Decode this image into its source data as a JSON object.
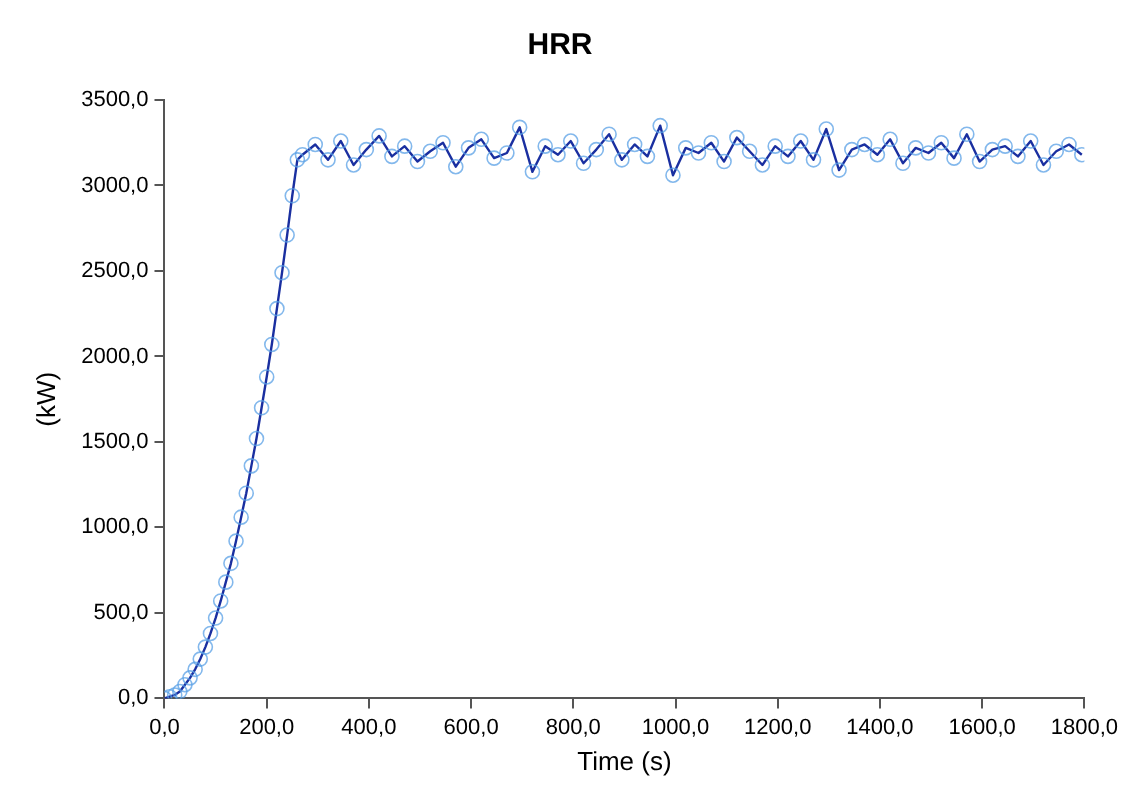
{
  "chart_data": {
    "type": "line",
    "title": "HRR",
    "xlabel": "Time (s)",
    "ylabel": "(kW)",
    "xlim": [
      0,
      1800
    ],
    "xticks": [
      {
        "value": 0,
        "label": "0,0"
      },
      {
        "value": 200,
        "label": "200,0"
      },
      {
        "value": 400,
        "label": "400,0"
      },
      {
        "value": 600,
        "label": "600,0"
      },
      {
        "value": 800,
        "label": "800,0"
      },
      {
        "value": 1000,
        "label": "1000,0"
      },
      {
        "value": 1200,
        "label": "1200,0"
      },
      {
        "value": 1400,
        "label": "1400,0"
      },
      {
        "value": 1600,
        "label": "1600,0"
      },
      {
        "value": 1800,
        "label": "1800,0"
      }
    ],
    "ylim": [
      0,
      3500
    ],
    "yticks": [
      {
        "value": 0,
        "label": "0,0"
      },
      {
        "value": 500,
        "label": "500,0"
      },
      {
        "value": 1000,
        "label": "1000,0"
      },
      {
        "value": 1500,
        "label": "1500,0"
      },
      {
        "value": 2000,
        "label": "2000,0"
      },
      {
        "value": 2500,
        "label": "2500,0"
      },
      {
        "value": 3000,
        "label": "3000,0"
      },
      {
        "value": 3500,
        "label": "3500,0"
      }
    ],
    "grid": false,
    "legend": false,
    "marker": "circle",
    "line_style": "solid",
    "series": [
      {
        "color": "#1a2fa0",
        "x": [
          0,
          10,
          20,
          30,
          40,
          50,
          60,
          70,
          80,
          90,
          100,
          110,
          120,
          130,
          140,
          150,
          160,
          170,
          180,
          190,
          200,
          210,
          220,
          230,
          240,
          250,
          260,
          270,
          295,
          320,
          345,
          370,
          395,
          420,
          445,
          470,
          495,
          520,
          545,
          570,
          595,
          620,
          645,
          670,
          695,
          720,
          745,
          770,
          795,
          820,
          845,
          870,
          895,
          920,
          945,
          970,
          995,
          1020,
          1045,
          1070,
          1095,
          1120,
          1145,
          1170,
          1195,
          1220,
          1245,
          1270,
          1295,
          1320,
          1345,
          1370,
          1395,
          1420,
          1445,
          1470,
          1495,
          1520,
          1545,
          1570,
          1595,
          1620,
          1645,
          1670,
          1695,
          1720,
          1745,
          1770,
          1795
        ],
        "values": [
          0,
          10,
          20,
          40,
          80,
          120,
          170,
          230,
          300,
          380,
          470,
          570,
          680,
          790,
          920,
          1060,
          1200,
          1360,
          1520,
          1700,
          1880,
          2070,
          2280,
          2490,
          2710,
          2940,
          3150,
          3180,
          3240,
          3150,
          3260,
          3120,
          3210,
          3290,
          3170,
          3230,
          3140,
          3200,
          3250,
          3110,
          3220,
          3270,
          3160,
          3190,
          3340,
          3080,
          3230,
          3180,
          3260,
          3130,
          3210,
          3300,
          3150,
          3240,
          3170,
          3350,
          3060,
          3220,
          3190,
          3250,
          3140,
          3280,
          3200,
          3120,
          3230,
          3170,
          3260,
          3150,
          3330,
          3090,
          3210,
          3240,
          3180,
          3270,
          3130,
          3220,
          3190,
          3250,
          3160,
          3300,
          3140,
          3210,
          3230,
          3170,
          3260,
          3120,
          3200,
          3240,
          3180
        ]
      }
    ]
  }
}
